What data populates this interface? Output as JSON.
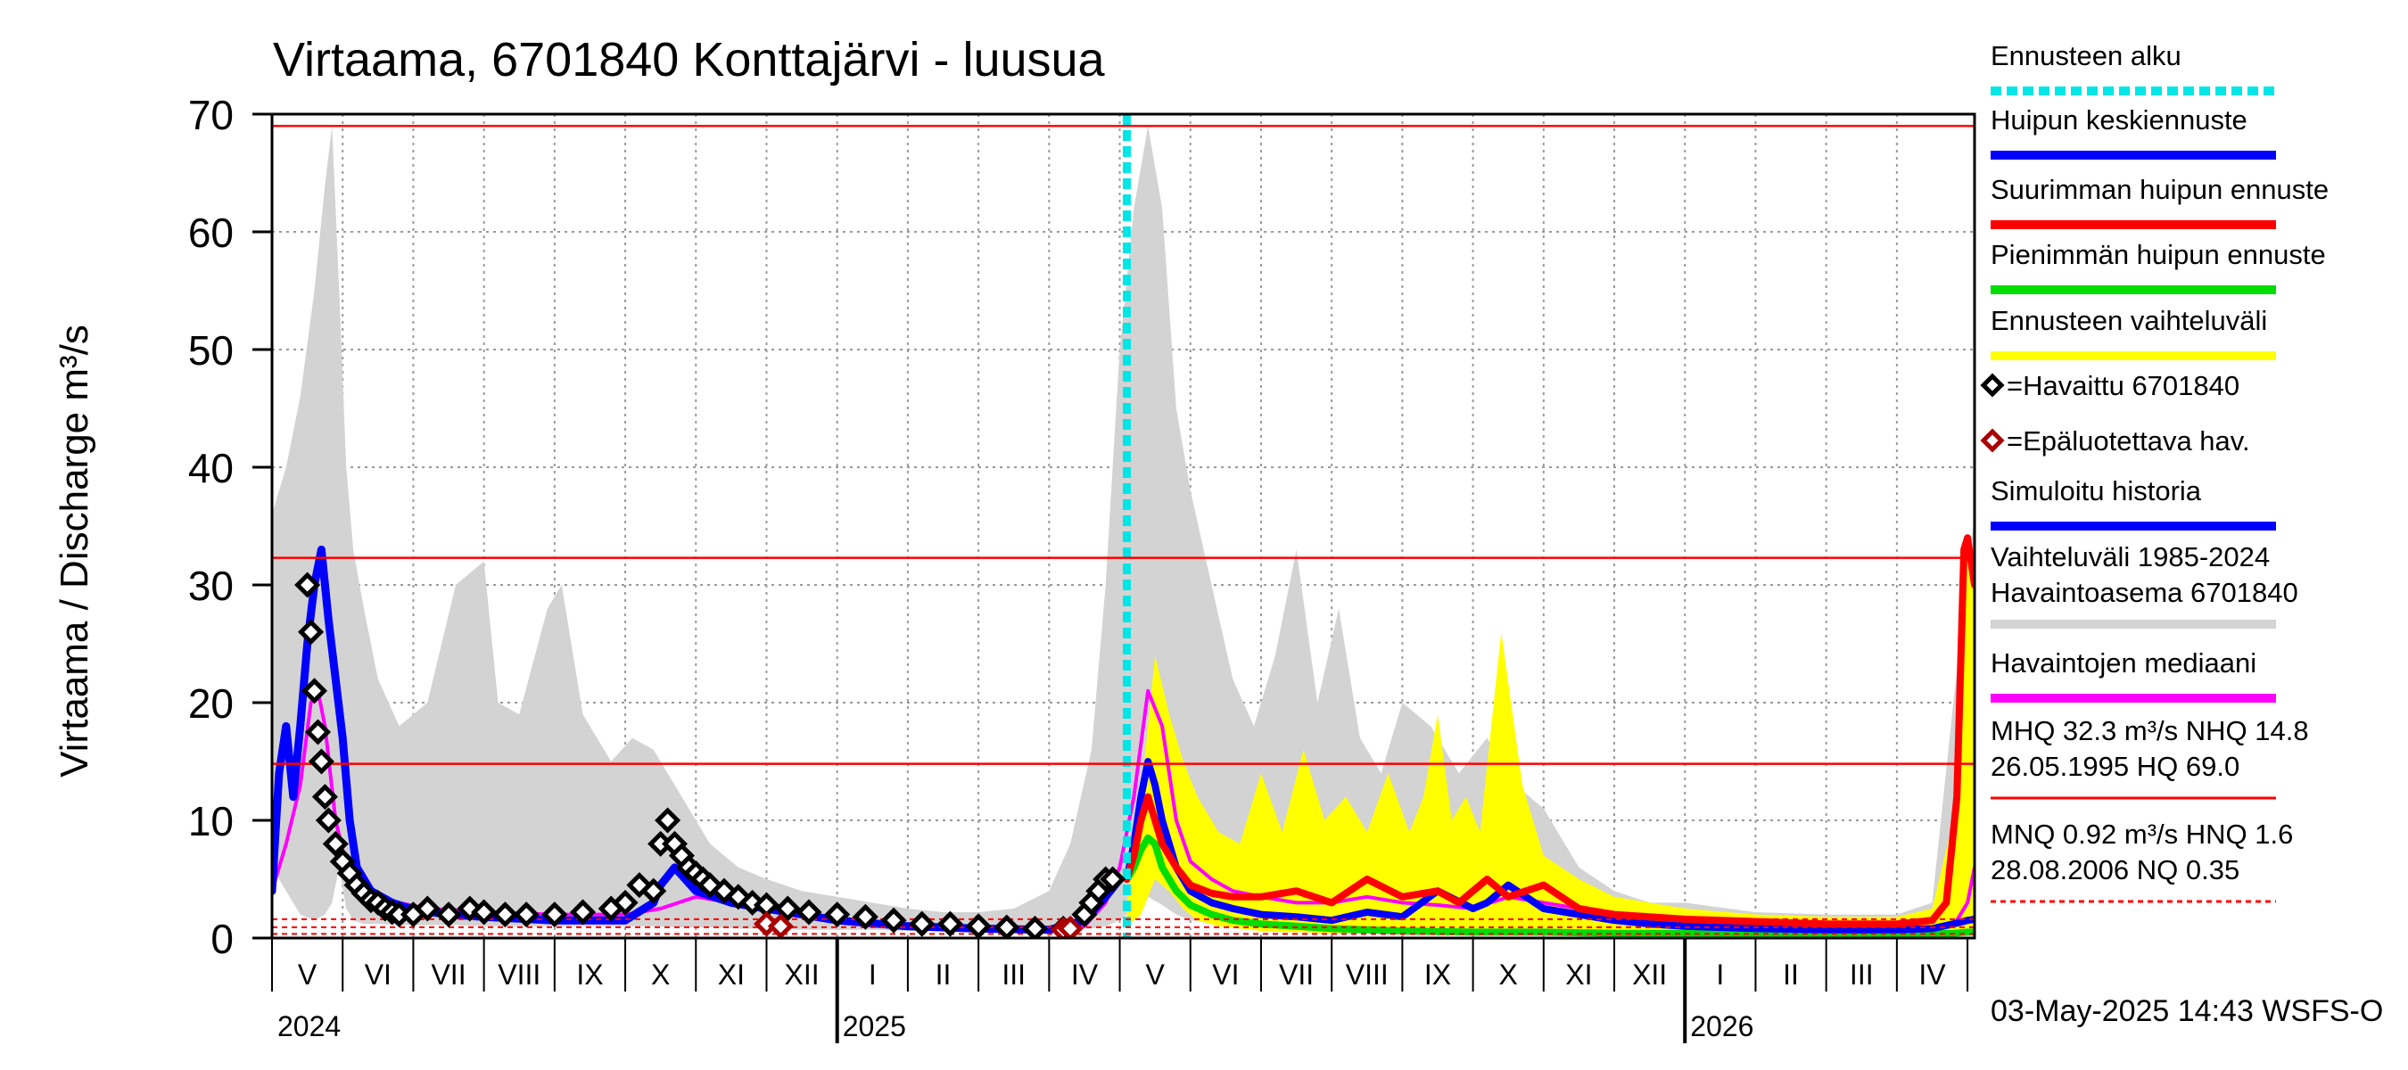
{
  "chart_data": {
    "type": "area",
    "title": "Virtaama, 6701840 Konttajärvi - luusua",
    "ylabel": "Virtaama / Discharge    m³/s",
    "ylim": [
      0,
      70
    ],
    "yticks": [
      0,
      10,
      20,
      30,
      40,
      50,
      60,
      70
    ],
    "x_range_months": [
      0,
      24.1
    ],
    "month_labels": [
      "V",
      "VI",
      "VII",
      "VIII",
      "IX",
      "X",
      "XI",
      "XII",
      "I",
      "II",
      "III",
      "IV",
      "V",
      "VI",
      "VII",
      "VIII",
      "IX",
      "X",
      "XI",
      "XII",
      "I",
      "II",
      "III",
      "IV"
    ],
    "year_labels": [
      {
        "month": 0,
        "label": "2024"
      },
      {
        "month": 8,
        "label": "2025"
      },
      {
        "month": 20,
        "label": "2026"
      }
    ],
    "forecast_start_month": 12.1,
    "reference_lines": [
      {
        "name": "HQ",
        "value": 69.0,
        "color": "#ff0000",
        "dashed": false
      },
      {
        "name": "MHQ",
        "value": 32.3,
        "color": "#ff0000",
        "dashed": false
      },
      {
        "name": "NHQ",
        "value": 14.8,
        "color": "#ff0000",
        "dashed": false
      },
      {
        "name": "HNQ",
        "value": 1.6,
        "color": "#ff0000",
        "dashed": true
      },
      {
        "name": "MNQ",
        "value": 0.92,
        "color": "#ff0000",
        "dashed": true
      },
      {
        "name": "NQ",
        "value": 0.35,
        "color": "#ff0000",
        "dashed": true
      }
    ],
    "series": [
      {
        "name": "Vaihteluväli 1985-2024",
        "color": "#d3d3d3",
        "type": "band",
        "x": [
          0,
          0.2,
          0.4,
          0.6,
          0.75,
          0.85,
          0.95,
          1.05,
          1.15,
          1.3,
          1.5,
          1.8,
          2.2,
          2.6,
          3.0,
          3.2,
          3.5,
          3.9,
          4.1,
          4.4,
          4.8,
          5.1,
          5.4,
          5.8,
          6.2,
          6.6,
          7.0,
          7.5,
          8.0,
          8.5,
          9.0,
          9.5,
          10.0,
          10.5,
          11.0,
          11.3,
          11.6,
          11.8,
          12.0,
          12.2,
          12.4,
          12.6,
          12.8,
          13.0,
          13.3,
          13.6,
          13.9,
          14.2,
          14.5,
          14.8,
          15.1,
          15.4,
          15.7,
          16.0,
          16.4,
          16.8,
          17.2,
          17.6,
          18.0,
          18.5,
          19.0,
          19.5,
          20.0,
          21.0,
          22.0,
          23.0,
          23.5,
          23.8,
          24.1
        ],
        "upper": [
          36,
          40,
          46,
          55,
          64,
          69,
          55,
          40,
          33,
          28,
          22,
          18,
          20,
          30,
          32,
          20,
          19,
          28,
          30,
          19,
          15,
          17,
          16,
          12,
          8,
          6,
          5,
          4,
          3.5,
          3,
          2.5,
          2.2,
          2.2,
          2.5,
          4,
          8,
          16,
          30,
          50,
          62,
          69,
          62,
          45,
          38,
          30,
          22,
          18,
          24,
          33,
          20,
          28,
          17,
          14,
          20,
          18,
          14,
          17,
          13,
          11,
          6,
          4,
          3,
          3,
          2.2,
          2,
          2,
          3,
          20,
          36
        ],
        "lower": [
          6,
          4,
          2,
          1.5,
          2,
          3,
          6,
          2.5,
          1.5,
          1.2,
          1.2,
          1.1,
          1.1,
          1.1,
          1.0,
          1.0,
          1.0,
          1.0,
          1.0,
          1.0,
          1.0,
          1.0,
          1.0,
          0.9,
          0.9,
          0.8,
          0.8,
          0.7,
          0.7,
          0.7,
          0.6,
          0.6,
          0.6,
          0.6,
          0.6,
          0.7,
          0.8,
          1.0,
          1.5,
          2.5,
          3.5,
          2.8,
          2.0,
          1.5,
          1.3,
          1.2,
          1.1,
          1.1,
          1.0,
          1.0,
          1.0,
          1.0,
          1.0,
          1.0,
          0.9,
          0.9,
          0.9,
          0.8,
          0.8,
          0.7,
          0.7,
          0.6,
          0.6,
          0.6,
          0.6,
          0.6,
          0.6,
          0.7,
          1.0
        ]
      },
      {
        "name": "Ennusteen vaihteluväli",
        "color": "#ffff00",
        "type": "band",
        "x": [
          12.1,
          12.3,
          12.5,
          12.7,
          12.9,
          13.1,
          13.4,
          13.7,
          14.0,
          14.3,
          14.6,
          14.9,
          15.2,
          15.5,
          15.8,
          16.1,
          16.3,
          16.5,
          16.7,
          16.9,
          17.1,
          17.4,
          17.7,
          18.0,
          18.5,
          19.0,
          19.5,
          20.0,
          21.0,
          22.0,
          23.0,
          23.5,
          23.8,
          24.0,
          24.1
        ],
        "upper": [
          3,
          12,
          24,
          19,
          15,
          12,
          9,
          8,
          14,
          9,
          16,
          10,
          12,
          9,
          14,
          9,
          12,
          19,
          10,
          12,
          9,
          26,
          13,
          7,
          5,
          3.5,
          3,
          2.5,
          2,
          1.8,
          1.8,
          2.5,
          10,
          33,
          33
        ],
        "lower": [
          1,
          2,
          5,
          4,
          2.5,
          1.5,
          1.0,
          0.8,
          0.6,
          0.5,
          0.5,
          0.4,
          0.4,
          0.4,
          0.4,
          0.4,
          0.4,
          0.4,
          0.4,
          0.4,
          0.4,
          0.4,
          0.4,
          0.3,
          0.3,
          0.3,
          0.3,
          0.3,
          0.3,
          0.3,
          0.3,
          0.3,
          0.5,
          0.6,
          0.6
        ]
      },
      {
        "name": "Havaintojen mediaani",
        "color": "#ff00ff",
        "type": "line",
        "x": [
          0,
          0.2,
          0.4,
          0.55,
          0.65,
          0.75,
          0.9,
          1.1,
          1.4,
          1.8,
          2.2,
          3.0,
          4.0,
          5.0,
          5.5,
          6.0,
          6.5,
          7.0,
          8.0,
          9.0,
          10.0,
          11.0,
          11.5,
          11.8,
          12.0,
          12.2,
          12.4,
          12.6,
          12.8,
          13.0,
          13.3,
          13.6,
          14.0,
          14.5,
          15.0,
          15.5,
          16.0,
          16.5,
          17.0,
          17.5,
          18.0,
          19.0,
          20.0,
          21.0,
          22.0,
          23.0,
          23.5,
          23.8,
          24.0,
          24.1
        ],
        "values": [
          4,
          8,
          13,
          20,
          21,
          18,
          10,
          5,
          3.5,
          3,
          2.5,
          2.2,
          2.0,
          2.0,
          2.5,
          3.5,
          3.0,
          2.5,
          1.5,
          1.0,
          0.8,
          0.7,
          1.0,
          3.0,
          6,
          12,
          21,
          18,
          10,
          6.5,
          5,
          4,
          3.5,
          3.0,
          3.0,
          3.5,
          3.0,
          2.8,
          2.5,
          3.5,
          3.0,
          2.0,
          1.5,
          1.2,
          1.0,
          0.8,
          0.8,
          1.0,
          3,
          6
        ]
      },
      {
        "name": "Simuloitu historia",
        "color": "#0000ff",
        "type": "line",
        "x": [
          0,
          0.1,
          0.2,
          0.3,
          0.4,
          0.5,
          0.6,
          0.7,
          0.8,
          0.9,
          1.0,
          1.1,
          1.2,
          1.4,
          1.7,
          2.0,
          2.5,
          3.0,
          4.0,
          5.0,
          5.4,
          5.5,
          5.7,
          6.0,
          6.5,
          7.0,
          7.5,
          8.0,
          9.0,
          10.0,
          11.0,
          11.5,
          11.8,
          12.0
        ],
        "values": [
          4,
          14,
          18,
          12,
          18,
          25,
          30,
          33,
          27,
          22,
          17,
          10,
          6,
          4,
          3,
          2.4,
          2.0,
          1.8,
          1.5,
          1.5,
          3.0,
          4.5,
          6.0,
          4.0,
          3.0,
          2.5,
          2.0,
          1.5,
          1.0,
          0.8,
          0.7,
          1.5,
          3.5,
          5
        ]
      },
      {
        "name": "Pienimmän huipun ennuste",
        "color": "#00dd00",
        "type": "line",
        "x": [
          12.1,
          12.2,
          12.3,
          12.4,
          12.5,
          12.6,
          12.8,
          13.0,
          13.3,
          13.6,
          14.0,
          14.5,
          15.0,
          16.0,
          17.0,
          18.0,
          19.0,
          20.0,
          21.0,
          22.0,
          23.0,
          23.5,
          23.8,
          24.0,
          24.1
        ],
        "values": [
          5,
          6,
          7.5,
          8.5,
          8,
          6,
          4,
          2.8,
          2.0,
          1.5,
          1.2,
          1.0,
          0.8,
          0.6,
          0.5,
          0.5,
          0.4,
          0.4,
          0.4,
          0.35,
          0.35,
          0.35,
          0.4,
          0.5,
          0.5
        ]
      },
      {
        "name": "Huipun keskiennuste",
        "color": "#0000ff",
        "type": "line",
        "x": [
          12.1,
          12.2,
          12.3,
          12.4,
          12.5,
          12.6,
          12.8,
          13.0,
          13.3,
          13.6,
          14.0,
          14.5,
          15.0,
          15.5,
          16.0,
          16.5,
          17.0,
          17.2,
          17.5,
          18.0,
          18.5,
          19.0,
          19.5,
          20.0,
          21.0,
          22.0,
          23.0,
          23.5,
          23.8,
          24.0,
          24.1
        ],
        "values": [
          5,
          8,
          12,
          15,
          13,
          10,
          6,
          4,
          3.0,
          2.5,
          2.0,
          1.8,
          1.5,
          2.2,
          1.8,
          4.0,
          2.5,
          3.0,
          4.5,
          2.5,
          2.0,
          1.5,
          1.2,
          1.0,
          0.8,
          0.7,
          0.7,
          0.8,
          1.2,
          1.5,
          1.6
        ]
      },
      {
        "name": "Suurimman huipun ennuste",
        "color": "#ff0000",
        "type": "line",
        "x": [
          12.1,
          12.2,
          12.3,
          12.4,
          12.5,
          12.6,
          12.8,
          13.0,
          13.3,
          13.6,
          14.0,
          14.5,
          15.0,
          15.5,
          16.0,
          16.5,
          16.8,
          17.2,
          17.5,
          18.0,
          18.5,
          19.0,
          19.5,
          20.0,
          21.0,
          22.0,
          23.0,
          23.5,
          23.7,
          23.85,
          23.95,
          24.0,
          24.1
        ],
        "values": [
          5,
          7,
          10,
          12,
          10,
          8,
          6,
          4.5,
          3.8,
          3.5,
          3.5,
          4.0,
          3.0,
          5.0,
          3.5,
          4.0,
          3.0,
          5.0,
          3.5,
          4.5,
          2.5,
          2.0,
          1.8,
          1.6,
          1.4,
          1.2,
          1.2,
          1.5,
          3,
          12,
          33,
          34,
          30
        ]
      }
    ],
    "observed": {
      "name": "Havaittu 6701840",
      "x": [
        0.5,
        0.55,
        0.6,
        0.65,
        0.7,
        0.75,
        0.8,
        0.9,
        1.0,
        1.1,
        1.2,
        1.3,
        1.4,
        1.5,
        1.6,
        1.7,
        1.8,
        2.0,
        2.2,
        2.5,
        2.8,
        3.0,
        3.3,
        3.6,
        4.0,
        4.4,
        4.8,
        5.0,
        5.2,
        5.4,
        5.5,
        5.6,
        5.7,
        5.8,
        5.9,
        6.0,
        6.1,
        6.2,
        6.4,
        6.6,
        6.8,
        7.0,
        7.3,
        7.6,
        8.0,
        8.4,
        8.8,
        9.2,
        9.6,
        10.0,
        10.4,
        10.8,
        11.2,
        11.5,
        11.6,
        11.7,
        11.8,
        11.9
      ],
      "values": [
        30,
        26,
        21,
        17.5,
        15,
        12,
        10,
        8,
        6.5,
        5.5,
        4.5,
        3.8,
        3.2,
        3.0,
        2.5,
        2.2,
        2.0,
        2.0,
        2.5,
        2.0,
        2.5,
        2.2,
        2.0,
        2.0,
        2.0,
        2.2,
        2.5,
        3.0,
        4.5,
        4.0,
        8.0,
        10.0,
        8.0,
        7.0,
        6.0,
        5.5,
        5.0,
        4.5,
        4.0,
        3.5,
        3.0,
        2.8,
        2.5,
        2.2,
        2.0,
        1.8,
        1.5,
        1.2,
        1.2,
        1.0,
        0.9,
        0.8,
        0.8,
        2.0,
        3.0,
        4.0,
        5.0,
        5.0
      ]
    },
    "unreliable": {
      "name": "Epäluotettava hav.",
      "x": [
        7.0,
        7.2,
        11.2,
        11.3
      ],
      "values": [
        1.2,
        1.0,
        0.7,
        0.8
      ]
    },
    "legend": [
      {
        "label": "Ennusteen alku",
        "kind": "dash",
        "color": "#00e5e5"
      },
      {
        "label": "Huipun keskiennuste",
        "kind": "line",
        "color": "#0000ff"
      },
      {
        "label": "Suurimman huipun ennuste",
        "kind": "line",
        "color": "#ff0000"
      },
      {
        "label": "Pienimmän huipun ennuste",
        "kind": "line",
        "color": "#00dd00"
      },
      {
        "label": "Ennusteen vaihteluväli",
        "kind": "line",
        "color": "#ffff00"
      },
      {
        "label": "=Havaittu 6701840",
        "kind": "marker",
        "color": "#000000"
      },
      {
        "label": "=Epäluotettava hav.",
        "kind": "marker",
        "color": "#aa0000"
      },
      {
        "label": "Simuloitu historia",
        "kind": "line",
        "color": "#0000ff"
      },
      {
        "label": "Vaihteluväli 1985-2024",
        "label2": " Havaintoasema 6701840",
        "kind": "line",
        "color": "#d3d3d3"
      },
      {
        "label": "Havaintojen mediaani",
        "kind": "line",
        "color": "#ff00ff"
      },
      {
        "label": "MHQ 32.3 m³/s NHQ 14.8",
        "label2": "26.05.1995 HQ 69.0",
        "kind": "thin",
        "color": "#ff0000"
      },
      {
        "label": "MNQ 0.92 m³/s HNQ  1.6",
        "label2": "28.08.2006 NQ 0.35",
        "kind": "dotted",
        "color": "#ff0000"
      }
    ],
    "footer": "03-May-2025 14:43 WSFS-O"
  }
}
